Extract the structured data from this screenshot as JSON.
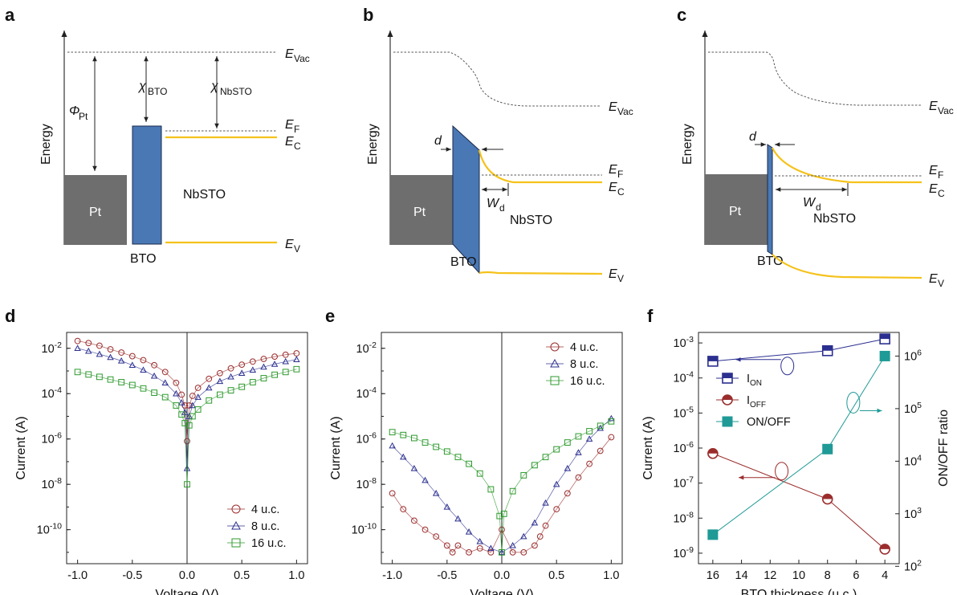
{
  "panel_labels": [
    "a",
    "b",
    "c",
    "d",
    "e",
    "f"
  ],
  "band_diagrams": {
    "energy_axis": "Energy",
    "pt_label": "Pt",
    "bto_label": "BTO",
    "nbsto_label": "NbSTO",
    "phi_pt": "Φ",
    "phi_pt_sub": "Pt",
    "chi_bto": "χ",
    "chi_bto_sub": "BTO",
    "chi_nbsto": "χ",
    "chi_nbsto_sub": "NbSTO",
    "e_vac": "E",
    "e_vac_sub": "Vac",
    "e_f": "E",
    "e_f_sub": "F",
    "e_c": "E",
    "e_c_sub": "C",
    "e_v": "E",
    "e_v_sub": "V",
    "d": "d",
    "w_d": "W",
    "w_d_sub": "d",
    "colors": {
      "metal": "#6e6e6e",
      "bto": "#4a78b5",
      "band": "#f5c21b"
    }
  },
  "chart_data": [
    {
      "type": "scatter",
      "panel": "d",
      "xlabel": "Voltage (V)",
      "ylabel": "Current (A)",
      "xlim": [
        -1.1,
        1.1
      ],
      "ylim_log10": [
        -11.5,
        -1.3
      ],
      "ylog": true,
      "xticks": [
        "-1.0",
        "-0.5",
        "0.0",
        "0.5",
        "1.0"
      ],
      "yticks": [
        "10-2",
        "10-4",
        "10-6",
        "10-8",
        "10-10"
      ],
      "legend_position": "bottom-right",
      "series": [
        {
          "name": "4 u.c.",
          "marker": "circle",
          "color": "#9b2d2d",
          "x": [
            -1.0,
            -0.9,
            -0.8,
            -0.7,
            -0.6,
            -0.5,
            -0.4,
            -0.3,
            -0.2,
            -0.1,
            -0.05,
            -0.02,
            0.0,
            0.02,
            0.05,
            0.1,
            0.2,
            0.3,
            0.4,
            0.5,
            0.6,
            0.7,
            0.8,
            0.9,
            1.0
          ],
          "y": [
            0.021,
            0.017,
            0.013,
            0.009,
            0.0065,
            0.0045,
            0.003,
            0.0018,
            0.0009,
            0.0003,
            9e-05,
            3e-05,
            8e-07,
            3e-05,
            8e-05,
            0.00018,
            0.00045,
            0.0008,
            0.0013,
            0.0019,
            0.0026,
            0.0034,
            0.0043,
            0.0052,
            0.006
          ]
        },
        {
          "name": "8 u.c.",
          "marker": "triangle",
          "color": "#2b2f8f",
          "x": [
            -1.0,
            -0.9,
            -0.8,
            -0.7,
            -0.6,
            -0.5,
            -0.4,
            -0.3,
            -0.2,
            -0.1,
            -0.05,
            -0.02,
            0.0,
            0.02,
            0.05,
            0.1,
            0.2,
            0.3,
            0.4,
            0.5,
            0.6,
            0.7,
            0.8,
            0.9,
            1.0
          ],
          "y": [
            0.01,
            0.0075,
            0.0055,
            0.004,
            0.0028,
            0.0018,
            0.0011,
            0.0006,
            0.0003,
            0.0001,
            4e-05,
            1.5e-05,
            5e-08,
            1e-05,
            3e-05,
            7e-05,
            0.00018,
            0.00035,
            0.00055,
            0.0008,
            0.0011,
            0.0015,
            0.002,
            0.0026,
            0.0032
          ]
        },
        {
          "name": "16 u.c.",
          "marker": "square",
          "color": "#2e9a2e",
          "x": [
            -1.0,
            -0.9,
            -0.8,
            -0.7,
            -0.6,
            -0.5,
            -0.4,
            -0.3,
            -0.2,
            -0.1,
            -0.05,
            -0.02,
            0.0,
            0.02,
            0.05,
            0.1,
            0.2,
            0.3,
            0.4,
            0.5,
            0.6,
            0.7,
            0.8,
            0.9,
            1.0
          ],
          "y": [
            0.0009,
            0.0007,
            0.00055,
            0.00042,
            0.00032,
            0.00024,
            0.00017,
            0.00011,
            7e-05,
            3e-05,
            1.2e-05,
            5e-06,
            1e-08,
            4e-06,
            1e-05,
            2e-05,
            5e-05,
            9e-05,
            0.00014,
            0.0002,
            0.00032,
            0.00048,
            0.00068,
            0.0009,
            0.0012
          ]
        }
      ]
    },
    {
      "type": "scatter",
      "panel": "e",
      "xlabel": "Voltage (V)",
      "ylabel": "Current (A)",
      "xlim": [
        -1.1,
        1.1
      ],
      "ylim_log10": [
        -11.5,
        -1.3
      ],
      "ylog": true,
      "xticks": [
        "-1.0",
        "-0.5",
        "0.0",
        "0.5",
        "1.0"
      ],
      "yticks": [
        "10-2",
        "10-4",
        "10-6",
        "10-8",
        "10-10"
      ],
      "legend_position": "top-right",
      "series": [
        {
          "name": "4 u.c.",
          "marker": "circle",
          "color": "#9b2d2d",
          "x": [
            -1.0,
            -0.9,
            -0.8,
            -0.7,
            -0.6,
            -0.5,
            -0.45,
            -0.4,
            -0.3,
            -0.2,
            -0.1,
            0.0,
            0.1,
            0.2,
            0.3,
            0.35,
            0.4,
            0.5,
            0.6,
            0.7,
            0.8,
            0.9,
            1.0
          ],
          "y": [
            4e-09,
            8e-10,
            2.5e-10,
            1e-10,
            5e-11,
            2e-11,
            1e-11,
            2e-11,
            1e-11,
            1.5e-11,
            1e-11,
            1e-10,
            1e-11,
            1e-11,
            2e-11,
            5e-11,
            1.5e-10,
            8e-10,
            4e-09,
            2e-08,
            8e-08,
            3e-07,
            1.2e-06
          ]
        },
        {
          "name": "8 u.c.",
          "marker": "triangle",
          "color": "#2b2f8f",
          "x": [
            -1.0,
            -0.9,
            -0.8,
            -0.7,
            -0.6,
            -0.5,
            -0.4,
            -0.3,
            -0.2,
            -0.1,
            0.0,
            0.1,
            0.2,
            0.3,
            0.4,
            0.5,
            0.6,
            0.7,
            0.8,
            0.9,
            1.0
          ],
          "y": [
            5e-07,
            1.6e-07,
            5e-08,
            1.5e-08,
            4e-09,
            1e-09,
            3e-10,
            8e-11,
            3e-11,
            1.5e-11,
            1e-11,
            2e-11,
            5e-11,
            2e-10,
            1.5e-09,
            1e-08,
            5e-08,
            2.5e-07,
            1e-06,
            3e-06,
            8e-06
          ]
        },
        {
          "name": "16 u.c.",
          "marker": "square",
          "color": "#2e9a2e",
          "x": [
            -1.0,
            -0.9,
            -0.8,
            -0.7,
            -0.6,
            -0.5,
            -0.4,
            -0.3,
            -0.2,
            -0.1,
            -0.02,
            0.0,
            0.02,
            0.1,
            0.2,
            0.3,
            0.4,
            0.5,
            0.6,
            0.7,
            0.8,
            0.9,
            1.0
          ],
          "y": [
            2e-06,
            1.5e-06,
            1.1e-06,
            7e-07,
            4.5e-07,
            2.8e-07,
            1.6e-07,
            8e-08,
            3e-08,
            6e-09,
            4e-10,
            1e-11,
            5e-10,
            5e-09,
            2.5e-08,
            7e-08,
            1.6e-07,
            3.5e-07,
            7e-07,
            1.3e-06,
            2.2e-06,
            3.8e-06,
            6e-06
          ]
        }
      ]
    },
    {
      "type": "line",
      "panel": "f",
      "xlabel": "BTO thickness (u.c.)",
      "ylabel": "Current (A)",
      "ylabel_right": "ON/OFF ratio",
      "xlim": [
        17,
        3
      ],
      "xticks": [
        "16",
        "14",
        "12",
        "10",
        "8",
        "6",
        "4"
      ],
      "ylim_left_log10": [
        -9.3,
        -2.7
      ],
      "ylim_right_log10": [
        2.05,
        6.45
      ],
      "yticks_left": [
        "10-3",
        "10-4",
        "10-5",
        "10-6",
        "10-7",
        "10-8",
        "10-9"
      ],
      "yticks_right": [
        "106",
        "105",
        "104",
        "103",
        "102"
      ],
      "legend_position": "upper-left",
      "series": [
        {
          "name": "ION",
          "axis": "left",
          "marker": "square-half",
          "color": "#2b2f8f",
          "x": [
            16,
            8,
            4
          ],
          "y": [
            0.0003,
            0.0006,
            0.0013
          ]
        },
        {
          "name": "IOFF",
          "axis": "left",
          "marker": "circle-half",
          "color": "#9b2d2d",
          "x": [
            16,
            8,
            4
          ],
          "y": [
            7e-07,
            3.5e-08,
            1.3e-09
          ]
        },
        {
          "name": "ON/OFF",
          "axis": "right",
          "marker": "square",
          "color": "#1f9a96",
          "x": [
            16,
            8,
            4
          ],
          "y": [
            400,
            17000,
            1000000
          ]
        }
      ]
    }
  ]
}
